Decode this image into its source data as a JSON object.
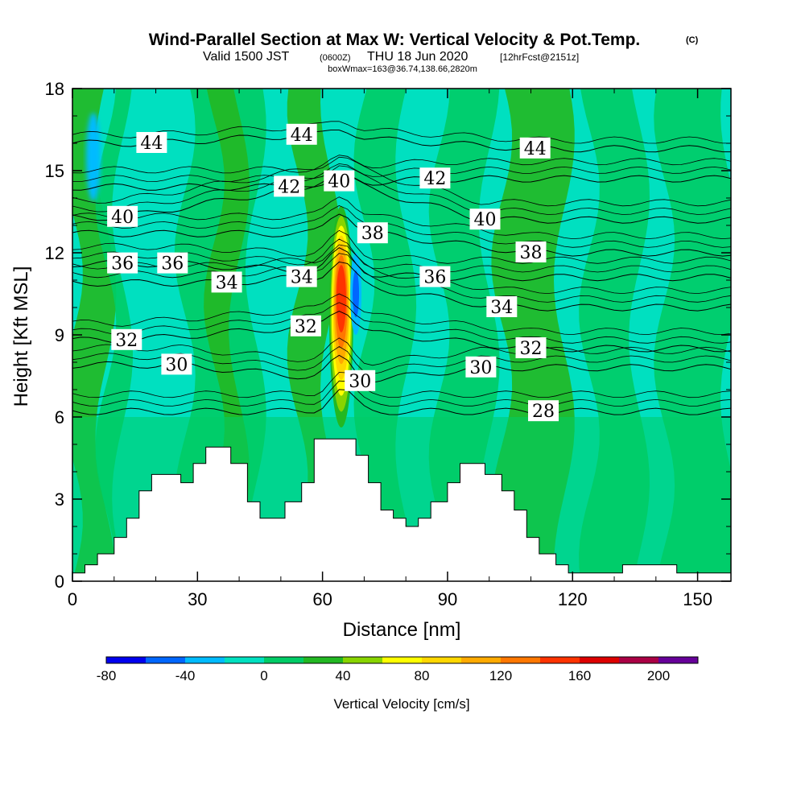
{
  "header": {
    "title": "Wind-Parallel Section at Max W: Vertical Velocity & Pot.Temp.",
    "title_mark": "(C)",
    "valid_prefix": "Valid 1500 JST",
    "valid_utc": "(0600Z)",
    "valid_date": "THU 18 Jun 2020",
    "forecast_info": "[12hrFcst@2151z]",
    "box_info": "boxWmax=163@36.74,138.66,2820m"
  },
  "chart_data": {
    "type": "heatmap",
    "xlabel": "Distance [nm]",
    "ylabel": "Height [Kft MSL]",
    "xlim": [
      0,
      158
    ],
    "ylim": [
      0,
      18
    ],
    "xticks": [
      0,
      30,
      60,
      90,
      120,
      150
    ],
    "yticks": [
      0,
      3,
      6,
      9,
      12,
      15,
      18
    ],
    "grid": false,
    "terrain_profile": {
      "x": [
        0,
        3,
        6,
        10,
        13,
        16,
        19,
        22,
        26,
        29,
        32,
        35,
        38,
        42,
        45,
        48,
        51,
        55,
        58,
        61,
        64,
        67,
        68,
        71,
        74,
        77,
        80,
        83,
        86,
        90,
        93,
        96,
        99,
        103,
        106,
        109,
        112,
        116,
        119,
        125,
        128,
        132,
        135,
        138,
        141,
        145,
        148,
        152,
        155,
        158
      ],
      "y": [
        0.3,
        0.6,
        1.0,
        1.6,
        2.3,
        3.3,
        3.9,
        3.9,
        3.6,
        4.3,
        4.9,
        4.9,
        4.3,
        2.9,
        2.3,
        2.3,
        2.9,
        3.6,
        5.2,
        5.2,
        5.2,
        5.2,
        4.6,
        3.6,
        2.6,
        2.3,
        2.0,
        2.3,
        2.9,
        3.6,
        4.3,
        4.3,
        3.9,
        3.3,
        2.6,
        1.6,
        1.0,
        0.6,
        0.3,
        0.3,
        0.3,
        0.6,
        0.6,
        0.6,
        0.6,
        0.3,
        0.3,
        0.3,
        0.3,
        0.3
      ]
    },
    "updraft_core": {
      "x_center": 64.5,
      "height_range": [
        6.5,
        14
      ],
      "max_value": 163,
      "units": "cm/s"
    },
    "downdraft_core": {
      "x_center": 68,
      "height_range": [
        9,
        12
      ],
      "min_value": -60,
      "units": "cm/s"
    },
    "theta_contours": [
      {
        "level": 28,
        "labels": [
          {
            "x": 113,
            "y": 6.2
          }
        ]
      },
      {
        "level": 30,
        "labels": [
          {
            "x": 25,
            "y": 7.9
          },
          {
            "x": 69,
            "y": 7.3
          },
          {
            "x": 98,
            "y": 7.8
          }
        ]
      },
      {
        "level": 32,
        "labels": [
          {
            "x": 13,
            "y": 8.8
          },
          {
            "x": 56,
            "y": 9.3
          },
          {
            "x": 110,
            "y": 8.5
          }
        ]
      },
      {
        "level": 34,
        "labels": [
          {
            "x": 37,
            "y": 10.9
          },
          {
            "x": 55,
            "y": 11.1
          },
          {
            "x": 103,
            "y": 10.0
          }
        ]
      },
      {
        "level": 36,
        "labels": [
          {
            "x": 12,
            "y": 11.6
          },
          {
            "x": 24,
            "y": 11.6
          },
          {
            "x": 87,
            "y": 11.1
          }
        ]
      },
      {
        "level": 38,
        "labels": [
          {
            "x": 72,
            "y": 12.7
          },
          {
            "x": 110,
            "y": 12.0
          }
        ]
      },
      {
        "level": 40,
        "labels": [
          {
            "x": 12,
            "y": 13.3
          },
          {
            "x": 64,
            "y": 14.6
          },
          {
            "x": 99,
            "y": 13.2
          }
        ]
      },
      {
        "level": 42,
        "labels": [
          {
            "x": 52,
            "y": 14.4
          },
          {
            "x": 87,
            "y": 14.7
          }
        ]
      },
      {
        "level": 44,
        "labels": [
          {
            "x": 19,
            "y": 16.0
          },
          {
            "x": 55,
            "y": 16.3
          },
          {
            "x": 111,
            "y": 15.8
          }
        ]
      }
    ],
    "colorbar": {
      "title": "Vertical Velocity [cm/s]",
      "tick_labels": [
        "-80",
        "-40",
        "0",
        "40",
        "80",
        "120",
        "160",
        "200"
      ],
      "tick_values": [
        -80,
        -40,
        0,
        40,
        80,
        120,
        160,
        200
      ],
      "bins": [
        -80,
        -60,
        -40,
        -20,
        0,
        20,
        40,
        60,
        80,
        100,
        120,
        140,
        160,
        180,
        200,
        220
      ],
      "colors": [
        "#0000ee",
        "#0066ff",
        "#00bbff",
        "#00e0c0",
        "#00cc66",
        "#22b822",
        "#88d400",
        "#ffff00",
        "#ffd700",
        "#ffaa00",
        "#ff7700",
        "#ff3300",
        "#dd0000",
        "#aa0044",
        "#660099"
      ]
    }
  }
}
